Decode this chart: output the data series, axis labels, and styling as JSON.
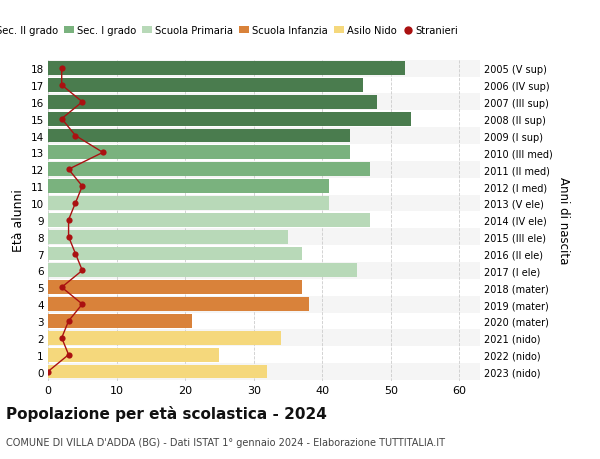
{
  "ages": [
    18,
    17,
    16,
    15,
    14,
    13,
    12,
    11,
    10,
    9,
    8,
    7,
    6,
    5,
    4,
    3,
    2,
    1,
    0
  ],
  "bar_values": [
    52,
    46,
    48,
    53,
    44,
    44,
    47,
    41,
    41,
    47,
    35,
    37,
    45,
    37,
    38,
    21,
    34,
    25,
    32
  ],
  "stranieri": [
    2,
    2,
    5,
    2,
    4,
    8,
    3,
    5,
    4,
    3,
    3,
    4,
    5,
    2,
    5,
    3,
    2,
    3,
    0
  ],
  "right_labels": [
    "2005 (V sup)",
    "2006 (IV sup)",
    "2007 (III sup)",
    "2008 (II sup)",
    "2009 (I sup)",
    "2010 (III med)",
    "2011 (II med)",
    "2012 (I med)",
    "2013 (V ele)",
    "2014 (IV ele)",
    "2015 (III ele)",
    "2016 (II ele)",
    "2017 (I ele)",
    "2018 (mater)",
    "2019 (mater)",
    "2020 (mater)",
    "2021 (nido)",
    "2022 (nido)",
    "2023 (nido)"
  ],
  "bar_colors": [
    "#4a7c4e",
    "#4a7c4e",
    "#4a7c4e",
    "#4a7c4e",
    "#4a7c4e",
    "#7ab27e",
    "#7ab27e",
    "#7ab27e",
    "#b8d9b8",
    "#b8d9b8",
    "#b8d9b8",
    "#b8d9b8",
    "#b8d9b8",
    "#d9823a",
    "#d9823a",
    "#d9823a",
    "#f5d87c",
    "#f5d87c",
    "#f5d87c"
  ],
  "legend_labels": [
    "Sec. II grado",
    "Sec. I grado",
    "Scuola Primaria",
    "Scuola Infanzia",
    "Asilo Nido",
    "Stranieri"
  ],
  "legend_colors": [
    "#4a7c4e",
    "#7ab27e",
    "#b8d9b8",
    "#d9823a",
    "#f5d87c",
    "#cc2222"
  ],
  "stranieri_color": "#aa1111",
  "title": "Popolazione per età scolastica - 2024",
  "subtitle": "COMUNE DI VILLA D'ADDA (BG) - Dati ISTAT 1° gennaio 2024 - Elaborazione TUTTITALIA.IT",
  "ylabel": "Età alunni",
  "right_ylabel": "Anni di nascita",
  "xlabel_ticks": [
    0,
    10,
    20,
    30,
    40,
    50,
    60
  ],
  "background_color": "#ffffff",
  "grid_color": "#cccccc",
  "bar_height": 0.82,
  "row_bg_even": "#f5f5f5",
  "row_bg_odd": "#ffffff"
}
